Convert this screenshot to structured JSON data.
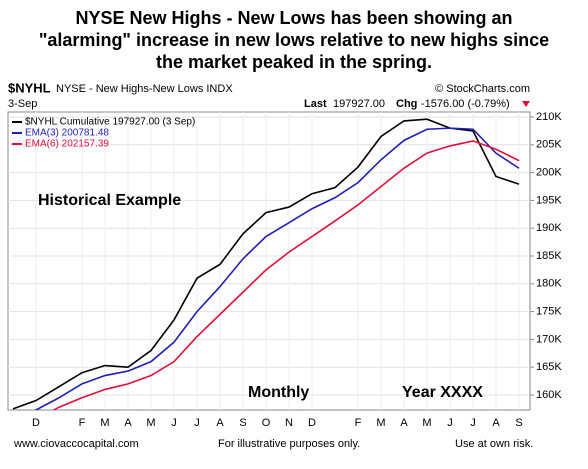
{
  "chart_data": {
    "type": "line",
    "title_lines": [
      "NYSE New Highs - New Lows has been showing an",
      "\"alarming\" increase in new lows relative to new highs since",
      "the market peaked in the spring."
    ],
    "header": {
      "symbol": "$NYHL",
      "name": "NYSE - New Highs-New Lows INDX",
      "source": "© StockCharts.com",
      "date": "3-Sep",
      "last_label": "Last",
      "last_value": "197927.00",
      "chg_label": "Chg",
      "chg_value": "-1576.00 (-0.79%)"
    },
    "annotations": [
      "Historical Example",
      "Monthly",
      "Year XXXX"
    ],
    "footer": [
      "www.ciovaccocapital.com",
      "For illustrative purposes only.",
      "Use at own risk."
    ],
    "categories": [
      null,
      "D",
      null,
      "F",
      "M",
      "A",
      "M",
      "J",
      "J",
      "A",
      "S",
      "O",
      "N",
      "D",
      null,
      "F",
      "M",
      "A",
      "M",
      "J",
      "J",
      "A",
      "S"
    ],
    "series": [
      {
        "name": "$NYHL Cumulative 197927.00 (3 Sep)",
        "color": "#000000",
        "values": [
          157500,
          159000,
          161500,
          164000,
          165300,
          165000,
          168000,
          173500,
          181000,
          183500,
          189000,
          192800,
          193800,
          196200,
          197300,
          201000,
          206500,
          209300,
          209600,
          208000,
          207500,
          199300,
          197927
        ]
      },
      {
        "name": "EMA(3) 200781.48",
        "color": "#1f1fb4",
        "values": [
          155500,
          157300,
          159500,
          162000,
          163500,
          164300,
          166000,
          169500,
          175000,
          179500,
          184500,
          188500,
          191000,
          193500,
          195500,
          198200,
          202300,
          205800,
          207800,
          208000,
          207800,
          203500,
          200781.48
        ]
      },
      {
        "name": "EMA(6) 202157.39",
        "color": "#e0103a",
        "values": [
          154000,
          155500,
          157800,
          159500,
          161000,
          162000,
          163500,
          166000,
          170500,
          174500,
          178500,
          182500,
          185700,
          188500,
          191300,
          194200,
          197500,
          200800,
          203500,
          204800,
          205700,
          204200,
          202157.39
        ]
      }
    ],
    "ylim": [
      157300,
      210900
    ],
    "yticks": [
      {
        "value": 160000,
        "label": "160K"
      },
      {
        "value": 165000,
        "label": "165K"
      },
      {
        "value": 170000,
        "label": "170K"
      },
      {
        "value": 175000,
        "label": "175K"
      },
      {
        "value": 180000,
        "label": "180K"
      },
      {
        "value": 185000,
        "label": "185K"
      },
      {
        "value": 190000,
        "label": "190K"
      },
      {
        "value": 195000,
        "label": "195K"
      },
      {
        "value": 200000,
        "label": "200K"
      },
      {
        "value": 205000,
        "label": "205K"
      },
      {
        "value": 210000,
        "label": "210K"
      }
    ],
    "grid": true
  }
}
